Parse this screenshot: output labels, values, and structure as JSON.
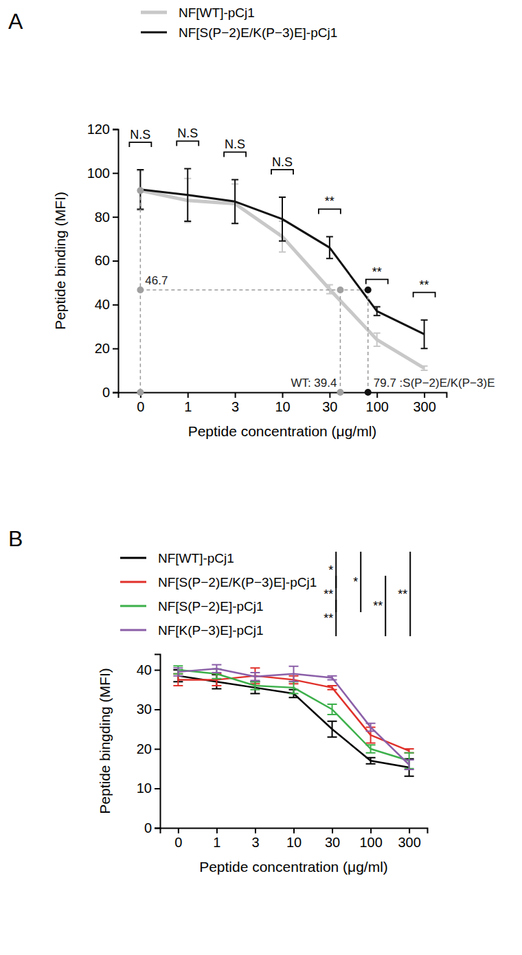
{
  "chart_data": [
    {
      "type": "line",
      "panel": "A",
      "x_label": "Peptide concentration (μg/ml)",
      "y_label": "Peptide binding (MFI)",
      "categories": [
        "0",
        "1",
        "3",
        "10",
        "30",
        "100",
        "300"
      ],
      "ylim": [
        0,
        120
      ],
      "yticks": [
        0,
        20,
        40,
        60,
        80,
        100,
        120
      ],
      "legend": "top",
      "series": [
        {
          "name": "NF[WT]-pCj1",
          "color": "#c8c8c8",
          "values": [
            92,
            87.5,
            86,
            71,
            47,
            24,
            11
          ],
          "errors": [
            9,
            10,
            9,
            7,
            2,
            3,
            1
          ]
        },
        {
          "name": "NF[S(P−2)E/K(P−3)E]-pCj1",
          "color": "#111111",
          "values": [
            92.5,
            90,
            87,
            79,
            66,
            37,
            26.5
          ],
          "errors": [
            9,
            12,
            10,
            10,
            5,
            2,
            6.5
          ]
        }
      ],
      "significance": [
        "N.S",
        "N.S",
        "N.S",
        "N.S",
        "**",
        "**",
        "**"
      ],
      "annotations": [
        {
          "text": "46.7",
          "x": 0,
          "y": 46.7
        },
        {
          "text": "WT: 39.4",
          "x": 39.4,
          "y": 46.7
        },
        {
          "text": "79.7 :S(P−2)E/K(P−3)E",
          "x": 79.7,
          "y": 46.7
        }
      ]
    },
    {
      "type": "line",
      "panel": "B",
      "x_label": "Peptide concentration (μg/ml)",
      "y_label": "Peptide bingding (MFI)",
      "categories": [
        "0",
        "1",
        "3",
        "10",
        "30",
        "100",
        "300"
      ],
      "ylim": [
        0,
        44
      ],
      "yticks": [
        0,
        10,
        20,
        30,
        40
      ],
      "legend": "top-left",
      "series": [
        {
          "name": "NF[WT]-pCj1",
          "color": "#000000",
          "values": [
            38.5,
            37,
            35.5,
            34,
            25,
            17,
            15.3
          ],
          "errors": [
            1.5,
            1.8,
            1.5,
            1,
            2,
            0.8,
            2.2
          ]
        },
        {
          "name": "NF[S(P−2)E/K(P−3)E]-pCj1",
          "color": "#e0302a",
          "values": [
            37.5,
            37.5,
            38.5,
            37.5,
            35.5,
            23.5,
            19.5
          ],
          "errors": [
            1.5,
            1.5,
            2,
            1,
            0.5,
            2,
            0.5
          ]
        },
        {
          "name": "NF[S(P−2)E]-pCj1",
          "color": "#3cb04a",
          "values": [
            40,
            39,
            36,
            35.5,
            30,
            20,
            17
          ],
          "errors": [
            1,
            1.2,
            1,
            1.5,
            1.3,
            1,
            2
          ]
        },
        {
          "name": "NF[K(P−3)E]-pCj1",
          "color": "#8b5fa8",
          "values": [
            39.5,
            40.3,
            38.3,
            39,
            38,
            25.5,
            16
          ],
          "errors": [
            1,
            1,
            1,
            1.9,
            0.5,
            1,
            1.2
          ]
        }
      ],
      "comparisons": [
        {
          "a": "NF[WT]-pCj1",
          "b": "NF[S(P−2)E/K(P−3)E]-pCj1",
          "label": "*"
        },
        {
          "a": "NF[S(P−2)E/K(P−3)E]-pCj1",
          "b": "NF[S(P−2)E]-pCj1",
          "label": "**"
        },
        {
          "a": "NF[S(P−2)E]-pCj1",
          "b": "NF[K(P−3)E]-pCj1",
          "label": "**"
        },
        {
          "a": "NF[WT]-pCj1",
          "b": "NF[S(P−2)E]-pCj1",
          "label": "*"
        },
        {
          "a": "NF[S(P−2)E/K(P−3)E]-pCj1",
          "b": "NF[K(P−3)E]-pCj1",
          "label": "**"
        },
        {
          "a": "NF[WT]-pCj1",
          "b": "NF[K(P−3)E]-pCj1",
          "label": "**"
        }
      ]
    }
  ]
}
